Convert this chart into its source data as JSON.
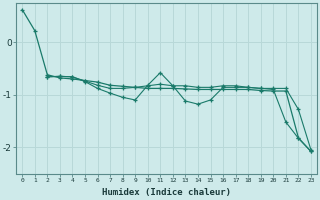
{
  "xlabel": "Humidex (Indice chaleur)",
  "background_color": "#ceeaea",
  "grid_color": "#b8d8d8",
  "line_color": "#1a7a6a",
  "x_values": [
    0,
    1,
    2,
    3,
    4,
    5,
    6,
    7,
    8,
    9,
    10,
    11,
    12,
    13,
    14,
    15,
    16,
    17,
    18,
    19,
    20,
    21,
    22,
    23
  ],
  "line1_y": [
    0.62,
    0.22,
    -0.62,
    -0.68,
    -0.7,
    -0.73,
    -0.76,
    -0.82,
    -0.84,
    -0.86,
    -0.88,
    -0.88,
    -0.88,
    -0.89,
    -0.9,
    -0.9,
    -0.9,
    -0.9,
    -0.9,
    -0.92,
    -0.93,
    -0.93,
    -1.82,
    -2.08
  ],
  "line2_y": [
    null,
    null,
    -0.66,
    -0.65,
    -0.66,
    -0.75,
    -0.88,
    -0.97,
    -1.05,
    -1.1,
    -0.82,
    -0.58,
    -0.83,
    -1.12,
    -1.18,
    -1.1,
    -0.86,
    -0.86,
    -0.86,
    -0.88,
    -0.9,
    -1.52,
    -1.83,
    -2.08
  ],
  "line3_y": [
    null,
    null,
    -0.66,
    -0.65,
    -0.66,
    -0.74,
    -0.82,
    -0.88,
    -0.88,
    -0.86,
    -0.83,
    -0.8,
    -0.83,
    -0.83,
    -0.86,
    -0.86,
    -0.83,
    -0.83,
    -0.86,
    -0.88,
    -0.88,
    -0.88,
    -1.28,
    -2.05
  ],
  "ylim": [
    -2.5,
    0.75
  ],
  "yticks": [
    -2,
    -1,
    0
  ],
  "xticks": [
    0,
    1,
    2,
    3,
    4,
    5,
    6,
    7,
    8,
    9,
    10,
    11,
    12,
    13,
    14,
    15,
    16,
    17,
    18,
    19,
    20,
    21,
    22,
    23
  ]
}
